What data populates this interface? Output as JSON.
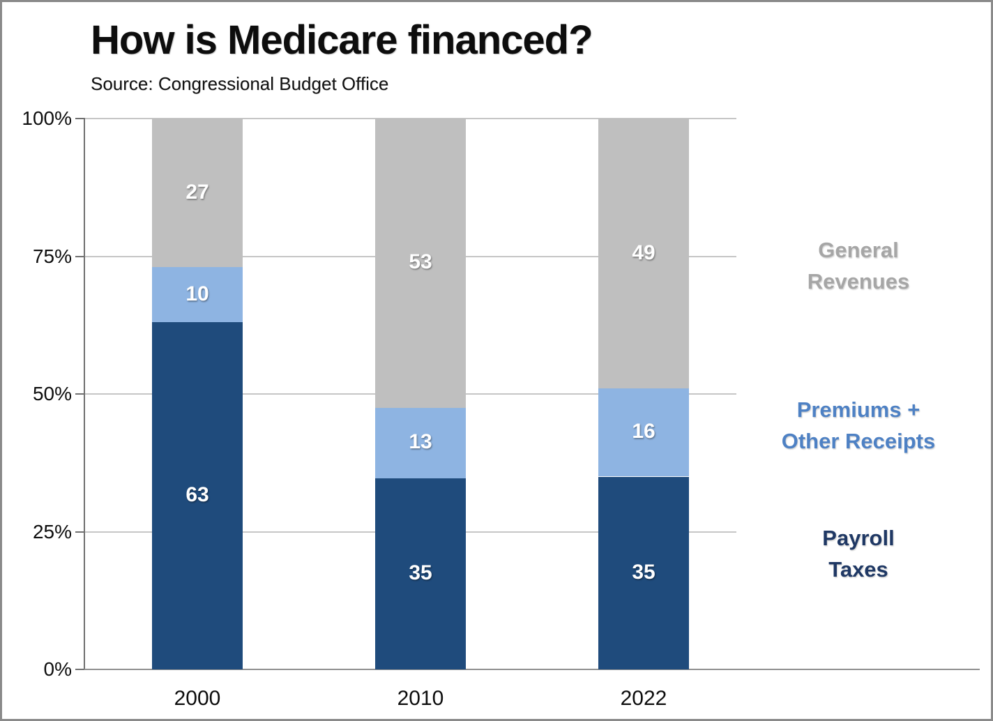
{
  "header": {
    "title": "How is Medicare financed?",
    "source": "Source: Congressional Budget Office"
  },
  "chart_data": {
    "type": "bar",
    "subtype": "100%-stacked-column",
    "title": "How is Medicare financed?",
    "source": "Source: Congressional Budget Office",
    "categories": [
      "2000",
      "2010",
      "2022"
    ],
    "series": [
      {
        "name": "Payroll Taxes",
        "color": "#1f4b7c",
        "values": [
          63,
          35,
          35
        ]
      },
      {
        "name": "Premiums + Other Receipts",
        "color": "#8eb4e2",
        "values": [
          10,
          13,
          16
        ]
      },
      {
        "name": "General Revenues",
        "color": "#bfbfbf",
        "values": [
          27,
          53,
          49
        ]
      }
    ],
    "bar_value_labels": [
      [
        "63",
        "10",
        "27"
      ],
      [
        "35",
        "13",
        "53"
      ],
      [
        "35",
        "16",
        "49"
      ]
    ],
    "y_axis": {
      "min": 0,
      "max": 100,
      "tick_labels": [
        "0%",
        "25%",
        "50%",
        "75%",
        "100%"
      ],
      "tick_values": [
        0,
        25,
        50,
        75,
        100
      ],
      "grid": true
    },
    "legend": {
      "position": "right",
      "entries": [
        {
          "series": "General Revenues",
          "lines": [
            "General",
            "Revenues"
          ],
          "color": "#a6a6a6"
        },
        {
          "series": "Premiums + Other Receipts",
          "lines": [
            "Premiums +",
            "Other Receipts"
          ],
          "color": "#4e81c4"
        },
        {
          "series": "Payroll Taxes",
          "lines": [
            "Payroll",
            "Taxes"
          ],
          "color": "#1f3864"
        }
      ]
    },
    "label_color_on_bars": "#ffffff"
  }
}
